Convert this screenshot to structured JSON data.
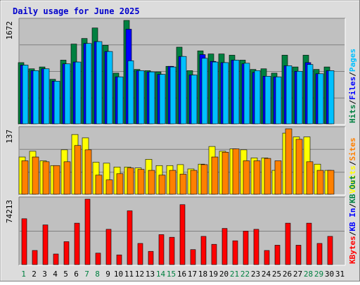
{
  "chart_data": {
    "type": "bar",
    "title": "Daily usage for June 2025",
    "categories": [
      "1",
      "2",
      "3",
      "4",
      "5",
      "6",
      "7",
      "8",
      "9",
      "10",
      "11",
      "12",
      "13",
      "14",
      "15",
      "16",
      "17",
      "18",
      "19",
      "20",
      "21",
      "22",
      "23",
      "24",
      "25",
      "26",
      "27",
      "28",
      "29",
      "30",
      "31"
    ],
    "weekend_days": [
      "1",
      "7",
      "8",
      "14",
      "15",
      "21",
      "22",
      "28",
      "29"
    ],
    "colors": {
      "title": "#0000cc",
      "hits": "#008040",
      "files": "#0000ff",
      "pages": "#00c0ff",
      "visits": "#ffff00",
      "sites": "#ff8000",
      "kbytes": "#ff0000",
      "kb_in": "#0000ff",
      "kb_out": "#008040",
      "weekday_label": "#000000",
      "weekend_label": "#008040",
      "panel_bg": "#c0c0c0",
      "frame_bg": "#dcdcdc"
    },
    "panels": [
      {
        "id": "top",
        "axis_max_label": "1672",
        "ylim": [
          0,
          1672
        ],
        "legend": [
          {
            "text": "Hits",
            "color_key": "hits"
          },
          {
            "text": "/",
            "color_key": "separator"
          },
          {
            "text": "Files",
            "color_key": "files"
          },
          {
            "text": "/",
            "color_key": "separator"
          },
          {
            "text": "Pages",
            "color_key": "pages"
          }
        ],
        "series": [
          {
            "name": "Hits",
            "color_key": "hits",
            "values": [
              990,
              890,
              920,
              720,
              1030,
              1290,
              1380,
              1550,
              1270,
              820,
              1672,
              880,
              860,
              840,
              930,
              1240,
              860,
              1180,
              1130,
              1130,
              1110,
              1030,
              880,
              890,
              820,
              1110,
              920,
              1110,
              880,
              920
            ]
          },
          {
            "name": "Files",
            "color_key": "files",
            "values": [
              950,
              860,
              890,
              690,
              970,
              1000,
              1300,
              1330,
              1170,
              760,
              1530,
              860,
              840,
              800,
              930,
              1090,
              790,
              1120,
              1010,
              990,
              1030,
              970,
              830,
              770,
              760,
              940,
              850,
              990,
              810,
              860
            ]
          },
          {
            "name": "Pages",
            "color_key": "pages",
            "values": [
              950,
              860,
              890,
              690,
              970,
              1000,
              1300,
              1330,
              1170,
              760,
              1020,
              860,
              840,
              800,
              920,
              1090,
              790,
              1060,
              1000,
              990,
              1030,
              980,
              860,
              770,
              760,
              940,
              850,
              960,
              810,
              860
            ]
          }
        ]
      },
      {
        "id": "middle",
        "axis_max_label": "137",
        "ylim": [
          0,
          137
        ],
        "legend": [
          {
            "text": "Visits",
            "color_key": "visits"
          },
          {
            "text": "/",
            "color_key": "separator"
          },
          {
            "text": "Sites",
            "color_key": "sites"
          }
        ],
        "series": [
          {
            "name": "Visits",
            "color_key": "visits",
            "values": [
              78,
              90,
              70,
              60,
              93,
              125,
              118,
              67,
              65,
              57,
              57,
              55,
              73,
              60,
              60,
              62,
              53,
              63,
              100,
              90,
              95,
              93,
              76,
              76,
              50,
              128,
              120,
              120,
              63,
              50
            ]
          },
          {
            "name": "Sites",
            "color_key": "sites",
            "values": [
              70,
              78,
              68,
              60,
              68,
              102,
              93,
              40,
              30,
              43,
              55,
              52,
              50,
              40,
              50,
              42,
              50,
              62,
              78,
              88,
              95,
              70,
              70,
              75,
              70,
              137,
              115,
              68,
              50,
              50
            ]
          }
        ]
      },
      {
        "id": "bottom",
        "axis_max_label": "74213",
        "ylim": [
          0,
          74213
        ],
        "legend": [
          {
            "text": "KBytes",
            "color_key": "kbytes"
          },
          {
            "text": "/",
            "color_key": "separator"
          },
          {
            "text": "KB In",
            "color_key": "kb_in"
          },
          {
            "text": "/",
            "color_key": "separator"
          },
          {
            "text": "KB Out",
            "color_key": "kb_out"
          }
        ],
        "series": [
          {
            "name": "KBytes",
            "color_key": "kbytes",
            "values": [
              52000,
              16000,
              45000,
              12000,
              26000,
              47000,
              74213,
              13000,
              40000,
              11000,
              61000,
              24000,
              15000,
              34000,
              31000,
              68000,
              17000,
              32000,
              23000,
              41000,
              27000,
              38000,
              40000,
              16000,
              22000,
              47000,
              22000,
              47000,
              24000,
              32000
            ]
          }
        ]
      }
    ]
  }
}
